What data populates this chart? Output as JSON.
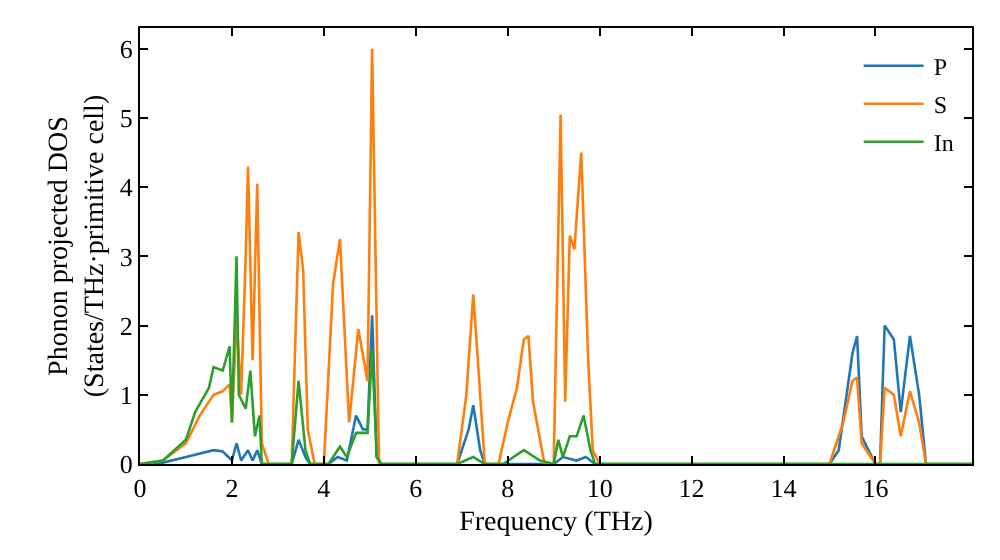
{
  "chart_data": {
    "type": "line",
    "xlabel": "Frequency (THz)",
    "ylabel": "Phonon projected DOS\n(States/THz·primitive cell)",
    "xlim": [
      0,
      18.1
    ],
    "ylim": [
      0,
      6.3
    ],
    "xticks": [
      0,
      2,
      4,
      6,
      8,
      10,
      12,
      14,
      16
    ],
    "yticks": [
      0,
      1,
      2,
      3,
      4,
      5,
      6
    ],
    "legend": "top right",
    "marker": "none",
    "line_style": "solid",
    "series": [
      {
        "name": "P",
        "color": "#1f77b4",
        "x": [
          0,
          0.5,
          1,
          1.6,
          1.8,
          2.0,
          2.1,
          2.2,
          2.35,
          2.45,
          2.55,
          2.65,
          3.3,
          3.45,
          3.6,
          3.7,
          4.1,
          4.3,
          4.5,
          4.7,
          4.85,
          4.95,
          5.05,
          5.15,
          5.25,
          6.9,
          7.15,
          7.25,
          7.4,
          7.5,
          9.0,
          9.2,
          9.5,
          9.7,
          9.9,
          15.0,
          15.2,
          15.5,
          15.6,
          15.7,
          16.0,
          16.1,
          16.2,
          16.4,
          16.55,
          16.75,
          16.95,
          17.1,
          18.1
        ],
        "values": [
          0,
          0.02,
          0.1,
          0.2,
          0.18,
          0.05,
          0.3,
          0.05,
          0.2,
          0.05,
          0.2,
          0,
          0,
          0.35,
          0.1,
          0,
          0,
          0.1,
          0.05,
          0.7,
          0.5,
          0.5,
          2.15,
          0.1,
          0,
          0,
          0.5,
          0.85,
          0.2,
          0,
          0,
          0.1,
          0.05,
          0.1,
          0,
          0,
          0.2,
          1.6,
          1.85,
          0.4,
          0,
          0,
          2.0,
          1.8,
          0.75,
          1.85,
          1.0,
          0,
          0
        ]
      },
      {
        "name": "S",
        "color": "#ff7f0e",
        "x": [
          0,
          0.5,
          1,
          1.3,
          1.6,
          1.8,
          1.95,
          2.0,
          2.1,
          2.2,
          2.3,
          2.35,
          2.45,
          2.55,
          2.65,
          2.8,
          3.3,
          3.45,
          3.55,
          3.65,
          3.8,
          4.0,
          4.2,
          4.35,
          4.55,
          4.75,
          4.95,
          5.05,
          5.2,
          6.9,
          7.1,
          7.25,
          7.35,
          7.5,
          7.8,
          8.0,
          8.2,
          8.35,
          8.45,
          8.55,
          8.8,
          9.0,
          9.15,
          9.25,
          9.35,
          9.45,
          9.6,
          9.75,
          9.85,
          10.0,
          15.0,
          15.3,
          15.5,
          15.6,
          15.7,
          16.0,
          16.1,
          16.2,
          16.4,
          16.55,
          16.75,
          16.95,
          17.1,
          18.1
        ],
        "values": [
          0,
          0.05,
          0.3,
          0.7,
          1.0,
          1.05,
          1.15,
          0.6,
          2.1,
          1.0,
          3.0,
          4.3,
          1.5,
          4.05,
          0.3,
          0,
          0,
          3.35,
          2.8,
          0.5,
          0,
          0,
          2.6,
          3.25,
          0.6,
          1.95,
          1.2,
          6.0,
          0,
          0,
          1.0,
          2.45,
          1.5,
          0,
          0,
          0.6,
          1.1,
          1.8,
          1.85,
          0.9,
          0,
          0,
          5.05,
          0.9,
          3.3,
          3.1,
          4.5,
          1.5,
          0.2,
          0,
          0,
          0.6,
          1.2,
          1.25,
          0.3,
          0,
          0,
          1.1,
          1.0,
          0.4,
          1.05,
          0.6,
          0,
          0
        ]
      },
      {
        "name": "In",
        "color": "#2ca02c",
        "x": [
          0,
          0.5,
          1,
          1.2,
          1.5,
          1.6,
          1.8,
          1.95,
          2.0,
          2.1,
          2.15,
          2.3,
          2.4,
          2.5,
          2.6,
          2.65,
          3.3,
          3.45,
          3.6,
          3.7,
          4.1,
          4.35,
          4.5,
          4.7,
          4.95,
          5.05,
          5.15,
          5.25,
          6.9,
          7.25,
          7.5,
          7.9,
          8.35,
          8.7,
          9.0,
          9.1,
          9.2,
          9.35,
          9.5,
          9.65,
          9.8,
          9.9,
          18.1
        ],
        "values": [
          0,
          0.05,
          0.35,
          0.75,
          1.1,
          1.4,
          1.35,
          1.7,
          0.6,
          3.0,
          1.0,
          0.8,
          1.35,
          0.4,
          0.7,
          0,
          0,
          1.2,
          0.2,
          0,
          0,
          0.25,
          0.1,
          0.45,
          0.45,
          1.65,
          0.1,
          0,
          0,
          0.1,
          0,
          0,
          0.2,
          0.05,
          0,
          0.35,
          0.1,
          0.4,
          0.4,
          0.7,
          0.2,
          0,
          0
        ]
      }
    ]
  }
}
